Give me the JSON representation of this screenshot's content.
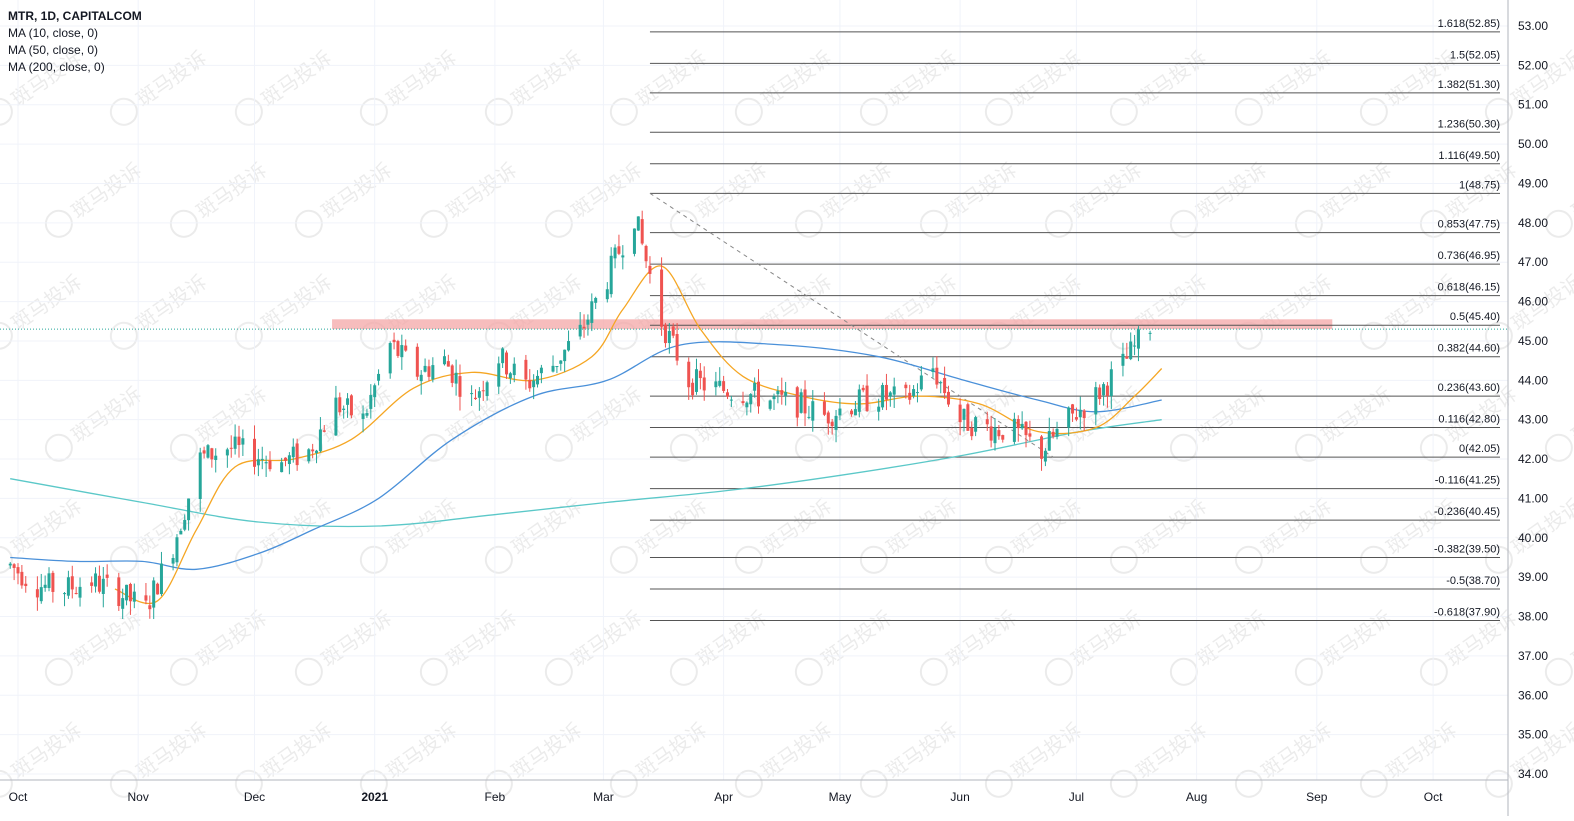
{
  "legend": {
    "title": "MTR, 1D, CAPITALCOM",
    "ma10": "MA (10, close, 0)",
    "ma50": "MA (50, close, 0)",
    "ma200": "MA (200, close, 0)"
  },
  "watermark_text": "斑马投诉",
  "colors": {
    "up": "#26a69a",
    "down": "#ef5350",
    "ma10": "#f5a623",
    "ma50": "#4a90d9",
    "ma200": "#5bc8c8",
    "fib": "#555555",
    "zone": "#f4a7a7"
  },
  "chart_data": {
    "type": "candlestick",
    "symbol": "MTR",
    "timeframe": "1D",
    "source": "CAPITALCOM",
    "ylim": [
      34.0,
      53.0
    ],
    "y_ticks": [
      "53.00",
      "52.00",
      "51.00",
      "50.00",
      "49.00",
      "48.00",
      "47.00",
      "46.00",
      "45.00",
      "44.00",
      "43.00",
      "42.00",
      "41.00",
      "40.00",
      "39.00",
      "38.00",
      "37.00",
      "36.00",
      "35.00",
      "34.00"
    ],
    "x_ticks": [
      {
        "label": "Oct",
        "day": 0
      },
      {
        "label": "Nov",
        "day": 31
      },
      {
        "label": "Dec",
        "day": 61
      },
      {
        "label": "2021",
        "day": 92,
        "bold": true
      },
      {
        "label": "Feb",
        "day": 123
      },
      {
        "label": "Mar",
        "day": 151
      },
      {
        "label": "Apr",
        "day": 182
      },
      {
        "label": "May",
        "day": 212
      },
      {
        "label": "Jun",
        "day": 243
      },
      {
        "label": "Jul",
        "day": 273
      },
      {
        "label": "Aug",
        "day": 304
      },
      {
        "label": "Sep",
        "day": 335
      },
      {
        "label": "Oct",
        "day": 365
      }
    ],
    "close_path": [
      [
        "2020-09-28",
        39.3
      ],
      [
        "2020-10-05",
        38.8
      ],
      [
        "2020-10-12",
        38.7
      ],
      [
        "2020-10-19",
        38.9
      ],
      [
        "2020-10-26",
        38.6
      ],
      [
        "2020-11-02",
        38.2
      ],
      [
        "2020-11-09",
        39.8
      ],
      [
        "2020-11-16",
        42.0
      ],
      [
        "2020-11-23",
        42.3
      ],
      [
        "2020-11-30",
        42.1
      ],
      [
        "2020-12-07",
        41.9
      ],
      [
        "2020-12-14",
        42.2
      ],
      [
        "2020-12-21",
        43.4
      ],
      [
        "2020-12-28",
        43.0
      ],
      [
        "2021-01-04",
        44.9
      ],
      [
        "2021-01-11",
        44.2
      ],
      [
        "2021-01-18",
        44.5
      ],
      [
        "2021-01-25",
        43.5
      ],
      [
        "2021-02-01",
        44.6
      ],
      [
        "2021-02-08",
        43.9
      ],
      [
        "2021-02-15",
        44.4
      ],
      [
        "2021-02-22",
        45.2
      ],
      [
        "2021-03-01",
        46.6
      ],
      [
        "2021-03-08",
        48.2
      ],
      [
        "2021-03-15",
        45.5
      ],
      [
        "2021-03-22",
        44.0
      ],
      [
        "2021-03-29",
        43.8
      ],
      [
        "2021-04-05",
        43.7
      ],
      [
        "2021-04-12",
        43.5
      ],
      [
        "2021-04-19",
        43.4
      ],
      [
        "2021-04-26",
        43.1
      ],
      [
        "2021-05-03",
        43.4
      ],
      [
        "2021-05-10",
        43.6
      ],
      [
        "2021-05-17",
        43.5
      ],
      [
        "2021-05-24",
        44.3
      ],
      [
        "2021-05-31",
        43.0
      ],
      [
        "2021-06-07",
        42.8
      ],
      [
        "2021-06-14",
        42.7
      ],
      [
        "2021-06-21",
        42.2
      ],
      [
        "2021-06-28",
        43.0
      ],
      [
        "2021-07-05",
        43.6
      ],
      [
        "2021-07-12",
        44.4
      ],
      [
        "2021-07-19",
        45.4
      ]
    ],
    "resistance_zone": [
      45.3,
      45.55
    ],
    "current_price": 45.3,
    "trendline": {
      "from": [
        "2021-03-12",
        48.75
      ],
      "to": [
        "2021-06-24",
        42.05
      ]
    },
    "fib_levels": [
      {
        "ratio": "1.618",
        "price": 52.85,
        "label": "1.618(52.85)"
      },
      {
        "ratio": "1.5",
        "price": 52.05,
        "label": "1.5(52.05)"
      },
      {
        "ratio": "1.382",
        "price": 51.3,
        "label": "1.382(51.30)"
      },
      {
        "ratio": "1.236",
        "price": 50.3,
        "label": "1.236(50.30)"
      },
      {
        "ratio": "1.116",
        "price": 49.5,
        "label": "1.116(49.50)"
      },
      {
        "ratio": "1",
        "price": 48.75,
        "label": "1(48.75)"
      },
      {
        "ratio": "0.853",
        "price": 47.75,
        "label": "0.853(47.75)"
      },
      {
        "ratio": "0.736",
        "price": 46.95,
        "label": "0.736(46.95)"
      },
      {
        "ratio": "0.618",
        "price": 46.15,
        "label": "0.618(46.15)"
      },
      {
        "ratio": "0.5",
        "price": 45.4,
        "label": "0.5(45.40)"
      },
      {
        "ratio": "0.382",
        "price": 44.6,
        "label": "0.382(44.60)"
      },
      {
        "ratio": "0.236",
        "price": 43.6,
        "label": "0.236(43.60)"
      },
      {
        "ratio": "0.116",
        "price": 42.8,
        "label": "0.116(42.80)"
      },
      {
        "ratio": "0",
        "price": 42.05,
        "label": "0(42.05)"
      },
      {
        "ratio": "-0.116",
        "price": 41.25,
        "label": "-0.116(41.25)"
      },
      {
        "ratio": "-0.236",
        "price": 40.45,
        "label": "-0.236(40.45)"
      },
      {
        "ratio": "-0.382",
        "price": 39.5,
        "label": "-0.382(39.50)"
      },
      {
        "ratio": "-0.5",
        "price": 38.7,
        "label": "-0.5(38.70)"
      },
      {
        "ratio": "-0.618",
        "price": 37.9,
        "label": "-0.618(37.90)"
      }
    ],
    "ma10": [
      [
        "2020-10-25",
        38.7
      ],
      [
        "2020-11-05",
        38.4
      ],
      [
        "2020-11-15",
        40.2
      ],
      [
        "2020-11-25",
        41.8
      ],
      [
        "2020-12-10",
        42.0
      ],
      [
        "2020-12-25",
        42.5
      ],
      [
        "2021-01-10",
        43.8
      ],
      [
        "2021-01-25",
        44.2
      ],
      [
        "2021-02-10",
        44.0
      ],
      [
        "2021-02-25",
        44.6
      ],
      [
        "2021-03-05",
        45.8
      ],
      [
        "2021-03-15",
        46.9
      ],
      [
        "2021-03-25",
        45.3
      ],
      [
        "2021-04-05",
        44.1
      ],
      [
        "2021-04-20",
        43.6
      ],
      [
        "2021-05-05",
        43.4
      ],
      [
        "2021-05-20",
        43.6
      ],
      [
        "2021-06-05",
        43.4
      ],
      [
        "2021-06-20",
        42.7
      ],
      [
        "2021-07-05",
        42.8
      ],
      [
        "2021-07-15",
        43.6
      ],
      [
        "2021-07-22",
        44.3
      ]
    ],
    "ma50": [
      [
        "2020-09-28",
        39.5
      ],
      [
        "2020-10-15",
        39.4
      ],
      [
        "2020-11-01",
        39.4
      ],
      [
        "2020-11-15",
        39.2
      ],
      [
        "2020-12-01",
        39.6
      ],
      [
        "2020-12-15",
        40.2
      ],
      [
        "2021-01-01",
        41.0
      ],
      [
        "2021-01-20",
        42.5
      ],
      [
        "2021-02-10",
        43.6
      ],
      [
        "2021-03-01",
        44.0
      ],
      [
        "2021-03-20",
        44.9
      ],
      [
        "2021-04-15",
        44.9
      ],
      [
        "2021-05-10",
        44.6
      ],
      [
        "2021-06-01",
        44.0
      ],
      [
        "2021-06-20",
        43.5
      ],
      [
        "2021-07-05",
        43.2
      ],
      [
        "2021-07-22",
        43.5
      ]
    ],
    "ma200": [
      [
        "2020-09-28",
        41.5
      ],
      [
        "2020-11-01",
        40.9
      ],
      [
        "2020-12-01",
        40.4
      ],
      [
        "2021-01-01",
        40.3
      ],
      [
        "2021-02-01",
        40.6
      ],
      [
        "2021-03-01",
        40.9
      ],
      [
        "2021-04-01",
        41.2
      ],
      [
        "2021-05-01",
        41.6
      ],
      [
        "2021-06-01",
        42.1
      ],
      [
        "2021-07-01",
        42.7
      ],
      [
        "2021-07-22",
        43.0
      ]
    ]
  }
}
